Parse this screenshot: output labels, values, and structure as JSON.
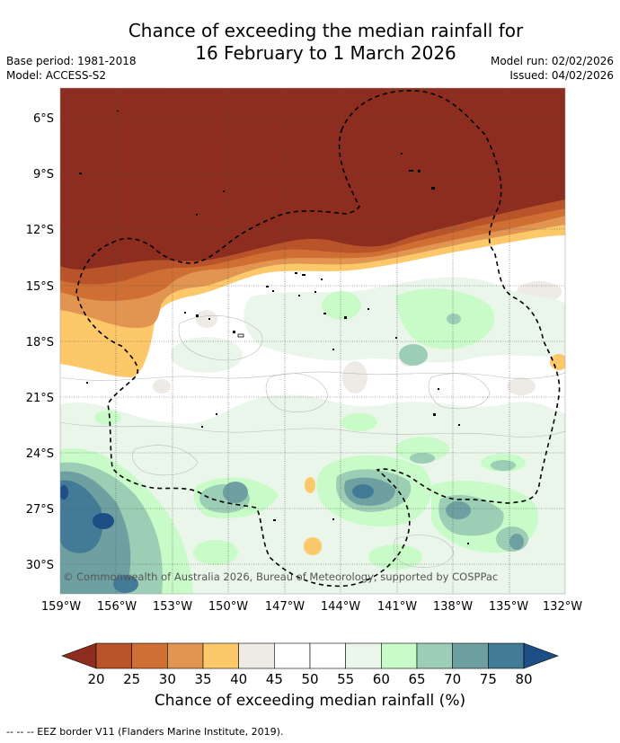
{
  "title": {
    "line1": "Chance of exceeding the median rainfall for",
    "line2": "16 February to 1 March 2026"
  },
  "info": {
    "base_period": "Base period: 1981-2018",
    "model": "Model: ACCESS-S2",
    "model_run": "Model run: 02/02/2026",
    "issued": "Issued: 04/02/2026"
  },
  "map": {
    "lat_labels": [
      "6°S",
      "9°S",
      "12°S",
      "15°S",
      "18°S",
      "21°S",
      "24°S",
      "27°S",
      "30°S"
    ],
    "lat_values": [
      -6,
      -9,
      -12,
      -15,
      -18,
      -21,
      -24,
      -27,
      -30
    ],
    "lon_labels": [
      "159°W",
      "156°W",
      "153°W",
      "150°W",
      "147°W",
      "144°W",
      "141°W",
      "138°W",
      "135°W",
      "132°W"
    ],
    "lon_values": [
      -159,
      -156,
      -153,
      -150,
      -147,
      -144,
      -141,
      -138,
      -135,
      -132
    ],
    "copyright": "© Commonwealth of Australia 2026, Bureau of Meteorology, supported by COSPPac"
  },
  "colorbar": {
    "ticks": [
      "20",
      "25",
      "30",
      "35",
      "40",
      "45",
      "50",
      "55",
      "60",
      "65",
      "70",
      "75",
      "80"
    ],
    "colors": [
      "#8c2d1f",
      "#b8532a",
      "#cf6f33",
      "#e19550",
      "#fdc86a",
      "#eeebe6",
      "#ffffff",
      "#ffffff",
      "#eaf6ea",
      "#c8fbc8",
      "#9ccdb5",
      "#6ea0a2",
      "#437a96",
      "#1d4e86"
    ],
    "label": "Chance of exceeding median rainfall (%)"
  },
  "footnote": "--  --  -- EEZ border V11 (Flanders Marine Institute, 2019)."
}
